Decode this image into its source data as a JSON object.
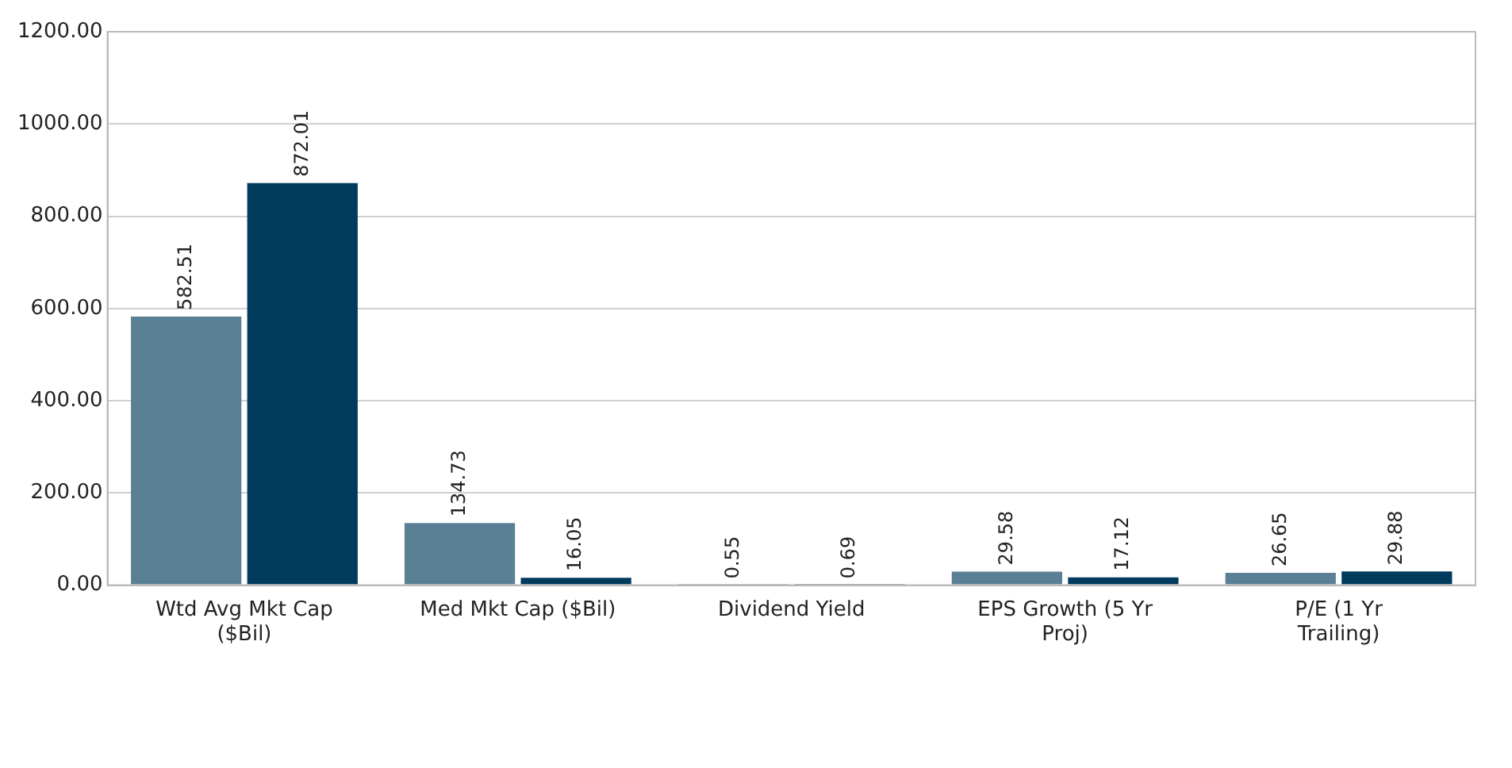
{
  "chart_data": {
    "type": "bar",
    "categories": [
      "Wtd Avg Mkt Cap ($Bil)",
      "Med Mkt Cap ($Bil)",
      "Dividend Yield",
      "EPS Growth (5 Yr Proj)",
      "P/E (1 Yr Trailing)"
    ],
    "series": [
      {
        "color": "#5b7f95",
        "values": [
          582.51,
          134.73,
          0.55,
          29.58,
          26.65
        ]
      },
      {
        "color": "#003a5d",
        "values": [
          872.01,
          16.05,
          0.69,
          17.12,
          29.88
        ]
      }
    ],
    "ylim": [
      0,
      1200
    ],
    "yticks": [
      {
        "value": 0,
        "label": "0.00"
      },
      {
        "value": 200,
        "label": "200.00"
      },
      {
        "value": 400,
        "label": "400.00"
      },
      {
        "value": 600,
        "label": "600.00"
      },
      {
        "value": 800,
        "label": "800.00"
      },
      {
        "value": 1000,
        "label": "1000.00"
      },
      {
        "value": 1200,
        "label": "1200.00"
      }
    ],
    "grid": "y",
    "data_labels": true
  }
}
